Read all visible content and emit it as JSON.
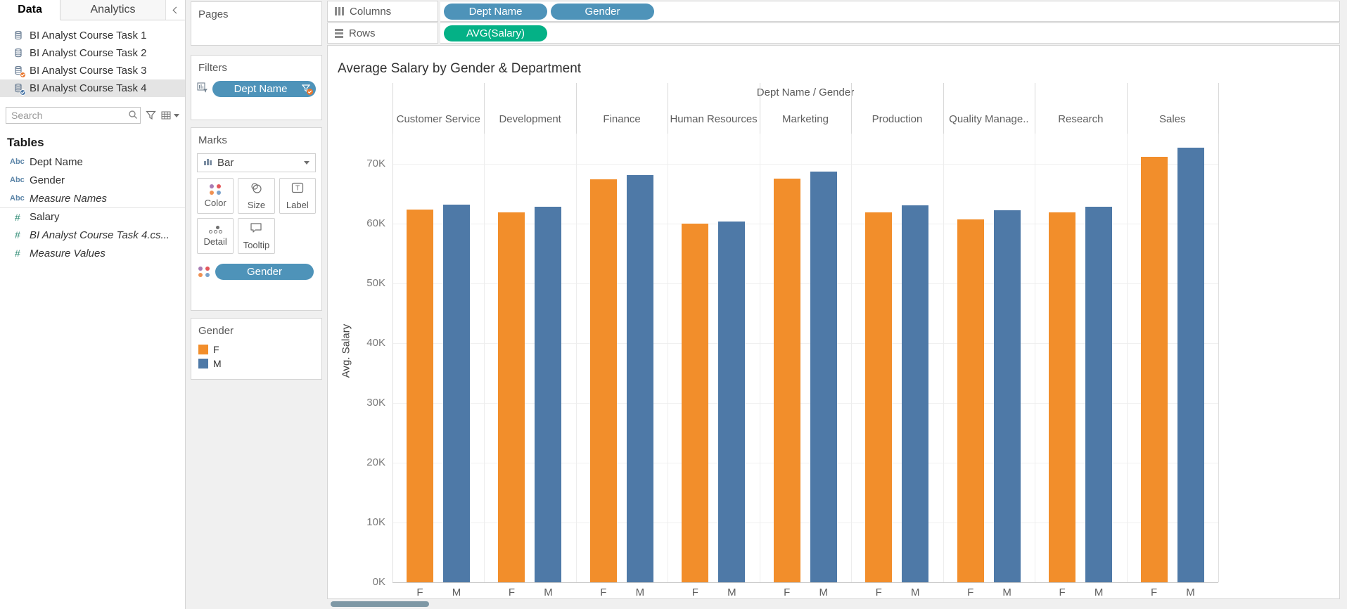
{
  "sidebar": {
    "tabs": {
      "data": "Data",
      "analytics": "Analytics"
    },
    "data_sources": [
      {
        "name": "BI Analyst Course Task 1",
        "badge": "none",
        "selected": false
      },
      {
        "name": "BI Analyst Course Task 2",
        "badge": "none",
        "selected": false
      },
      {
        "name": "BI Analyst Course Task 3",
        "badge": "orange",
        "selected": false
      },
      {
        "name": "BI Analyst Course Task 4",
        "badge": "blue",
        "selected": true
      }
    ],
    "search_placeholder": "Search",
    "tables_heading": "Tables",
    "fields": [
      {
        "name": "Dept Name",
        "type": "string",
        "italic": false,
        "separator_above": false
      },
      {
        "name": "Gender",
        "type": "string",
        "italic": false,
        "separator_above": false
      },
      {
        "name": "Measure Names",
        "type": "string",
        "italic": true,
        "separator_above": false
      },
      {
        "name": "Salary",
        "type": "number",
        "italic": false,
        "separator_above": true
      },
      {
        "name": "BI Analyst Course Task 4.cs...",
        "type": "number",
        "italic": true,
        "separator_above": false
      },
      {
        "name": "Measure Values",
        "type": "number",
        "italic": true,
        "separator_above": false
      }
    ]
  },
  "panel": {
    "pages_label": "Pages",
    "filters_label": "Filters",
    "filter_pill": "Dept Name",
    "marks_label": "Marks",
    "mark_type": "Bar",
    "buttons": {
      "color": "Color",
      "size": "Size",
      "label": "Label",
      "detail": "Detail",
      "tooltip": "Tooltip"
    },
    "marks_pill": "Gender"
  },
  "legend": {
    "title": "Gender",
    "items": [
      {
        "label": "F",
        "color": "#F28E2B"
      },
      {
        "label": "M",
        "color": "#4E79A7"
      }
    ]
  },
  "shelves": {
    "columns_label": "Columns",
    "columns_pills": [
      "Dept Name",
      "Gender"
    ],
    "rows_label": "Rows",
    "rows_pills": [
      "AVG(Salary)"
    ]
  },
  "chart_data": {
    "type": "bar",
    "title": "Average Salary by Gender & Department",
    "column_field_label": "Dept Name / Gender",
    "ylabel": "Avg. Salary",
    "ylim": [
      0,
      75000
    ],
    "yticks": [
      {
        "label": "0K",
        "value": 0
      },
      {
        "label": "10K",
        "value": 10000
      },
      {
        "label": "20K",
        "value": 20000
      },
      {
        "label": "30K",
        "value": 30000
      },
      {
        "label": "40K",
        "value": 40000
      },
      {
        "label": "50K",
        "value": 50000
      },
      {
        "label": "60K",
        "value": 60000
      },
      {
        "label": "70K",
        "value": 70000
      }
    ],
    "categories": [
      "Customer Service",
      "Development",
      "Finance",
      "Human Resources",
      "Marketing",
      "Production",
      "Quality Manage..",
      "Research",
      "Sales"
    ],
    "series": [
      {
        "name": "F",
        "color": "#F28E2B",
        "values": [
          62300,
          61800,
          67400,
          60000,
          67500,
          61800,
          60700,
          61800,
          71100
        ]
      },
      {
        "name": "M",
        "color": "#4E79A7",
        "values": [
          63100,
          62800,
          68100,
          60300,
          68600,
          63000,
          62200,
          62800,
          72600
        ]
      }
    ],
    "grid": true,
    "legend_position": "left panel"
  },
  "colors": {
    "dimension_pill": "#4E93B9",
    "measure_pill": "#04B186",
    "bar_f": "#F28E2B",
    "bar_m": "#4E79A7",
    "badge_orange": "#E8762D",
    "badge_blue": "#4E79A7"
  }
}
